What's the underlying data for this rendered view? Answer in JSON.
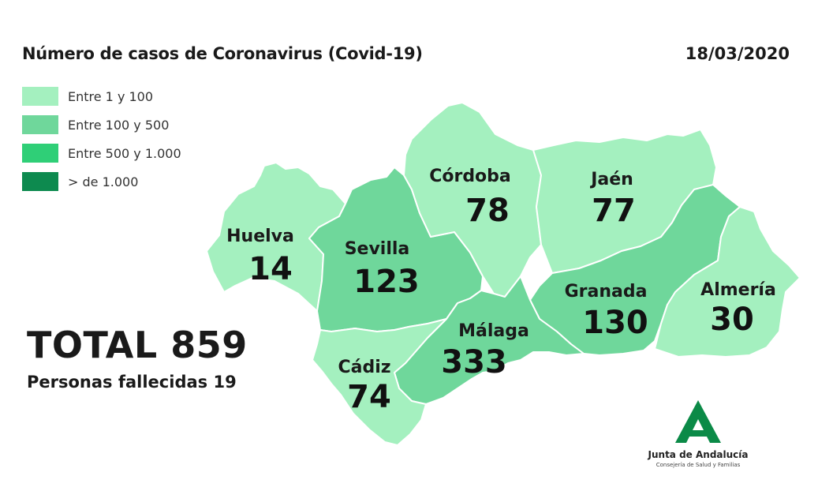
{
  "header": {
    "title": "Número de casos de Coronavirus (Covid-19)",
    "date": "18/03/2020"
  },
  "legend": [
    {
      "label": "Entre 1 y 100",
      "color": "#a4f0bf"
    },
    {
      "label": "Entre 100 y 500",
      "color": "#6fd79b"
    },
    {
      "label": "Entre 500 y  1.000",
      "color": "#2fcf77"
    },
    {
      "label": "> de 1.000",
      "color": "#0d8a4f"
    }
  ],
  "summary": {
    "total": "TOTAL 859",
    "deaths": "Personas fallecidas 19"
  },
  "provinces": {
    "huelva": {
      "name": "Huelva",
      "count": "14",
      "color": "#a4f0bf"
    },
    "sevilla": {
      "name": "Sevilla",
      "count": "123",
      "color": "#6fd79b"
    },
    "cordoba": {
      "name": "Córdoba",
      "count": "78",
      "color": "#a4f0bf"
    },
    "jaen": {
      "name": "Jaén",
      "count": "77",
      "color": "#a4f0bf"
    },
    "granada": {
      "name": "Granada",
      "count": "130",
      "color": "#6fd79b"
    },
    "almeria": {
      "name": "Almería",
      "count": "30",
      "color": "#a4f0bf"
    },
    "malaga": {
      "name": "Málaga",
      "count": "333",
      "color": "#6fd79b"
    },
    "cadiz": {
      "name": "Cádiz",
      "count": "74",
      "color": "#a4f0bf"
    }
  },
  "logo": {
    "name": "Junta de Andalucía",
    "subtitle": "Consejería de Salud y Familias",
    "color": "#0b8a47"
  }
}
